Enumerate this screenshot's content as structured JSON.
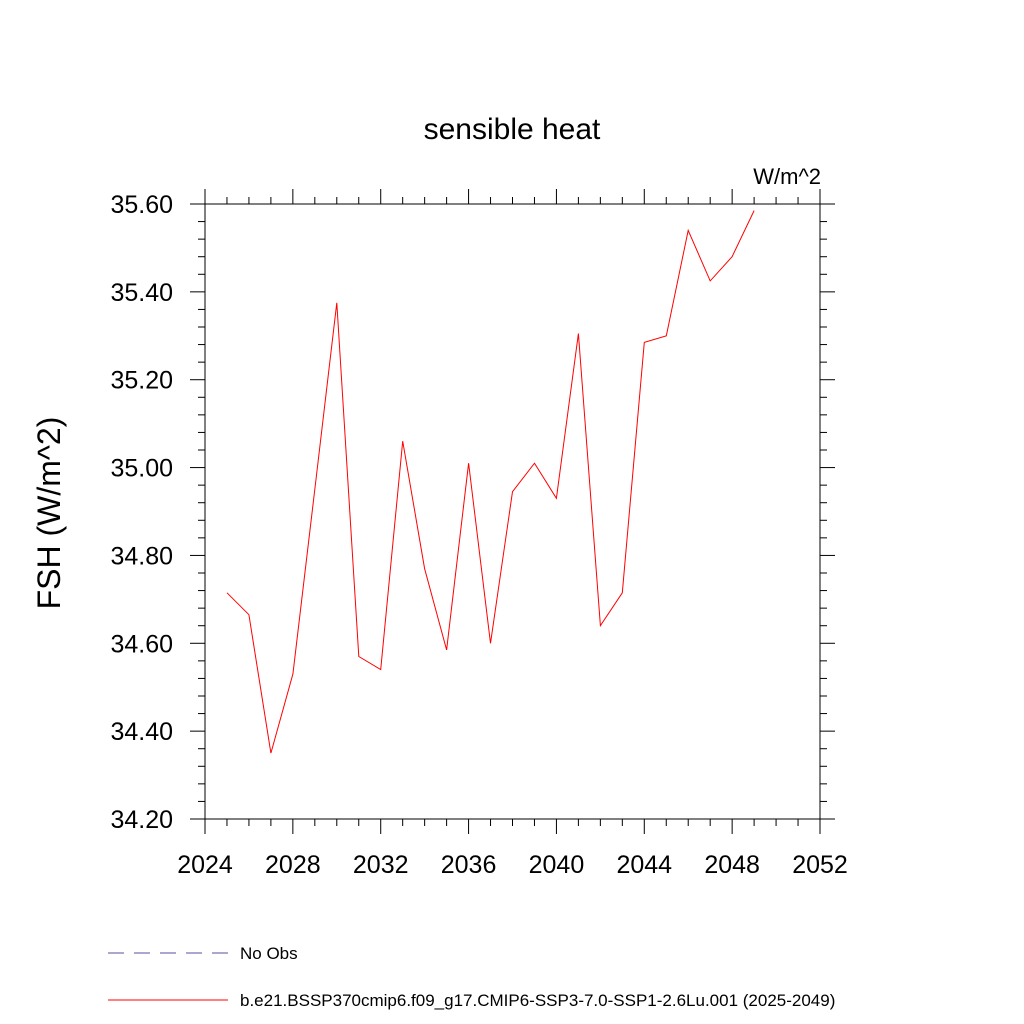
{
  "chart_data": {
    "type": "line",
    "title": "sensible heat",
    "units_label": "W/m^2",
    "ylabel": "FSH  (W/m^2)",
    "xlabel": "",
    "xlim": [
      2024,
      2052
    ],
    "ylim": [
      34.2,
      35.6
    ],
    "xticks": [
      "2024",
      "2028",
      "2032",
      "2036",
      "2040",
      "2044",
      "2048",
      "2052"
    ],
    "yticks": [
      "34.20",
      "34.40",
      "34.60",
      "34.80",
      "35.00",
      "35.20",
      "35.40",
      "35.60"
    ],
    "series": [
      {
        "name": "b.e21.BSSP370cmip6.f09_g17.CMIP6-SSP3-7.0-SSP1-2.6Lu.001 (2025-2049)",
        "color": "#ff0000",
        "style": "solid",
        "x": [
          2025,
          2026,
          2027,
          2028,
          2029,
          2030,
          2031,
          2032,
          2033,
          2034,
          2035,
          2036,
          2037,
          2038,
          2039,
          2040,
          2041,
          2042,
          2043,
          2044,
          2045,
          2046,
          2047,
          2048,
          2049
        ],
        "y": [
          34.715,
          34.665,
          34.35,
          34.53,
          34.95,
          35.375,
          34.57,
          34.54,
          35.06,
          34.77,
          34.585,
          35.01,
          34.6,
          34.945,
          35.01,
          34.93,
          35.305,
          34.64,
          34.715,
          35.285,
          35.3,
          35.54,
          35.425,
          35.48,
          35.585
        ]
      }
    ],
    "legend": [
      {
        "label": "No Obs",
        "color": "#5a4fa0",
        "style": "dashed"
      },
      {
        "label": "b.e21.BSSP370cmip6.f09_g17.CMIP6-SSP3-7.0-SSP1-2.6Lu.001 (2025-2049)",
        "color": "#ff0000",
        "style": "solid"
      }
    ],
    "legend_position": "bottom-left",
    "grid": false
  }
}
